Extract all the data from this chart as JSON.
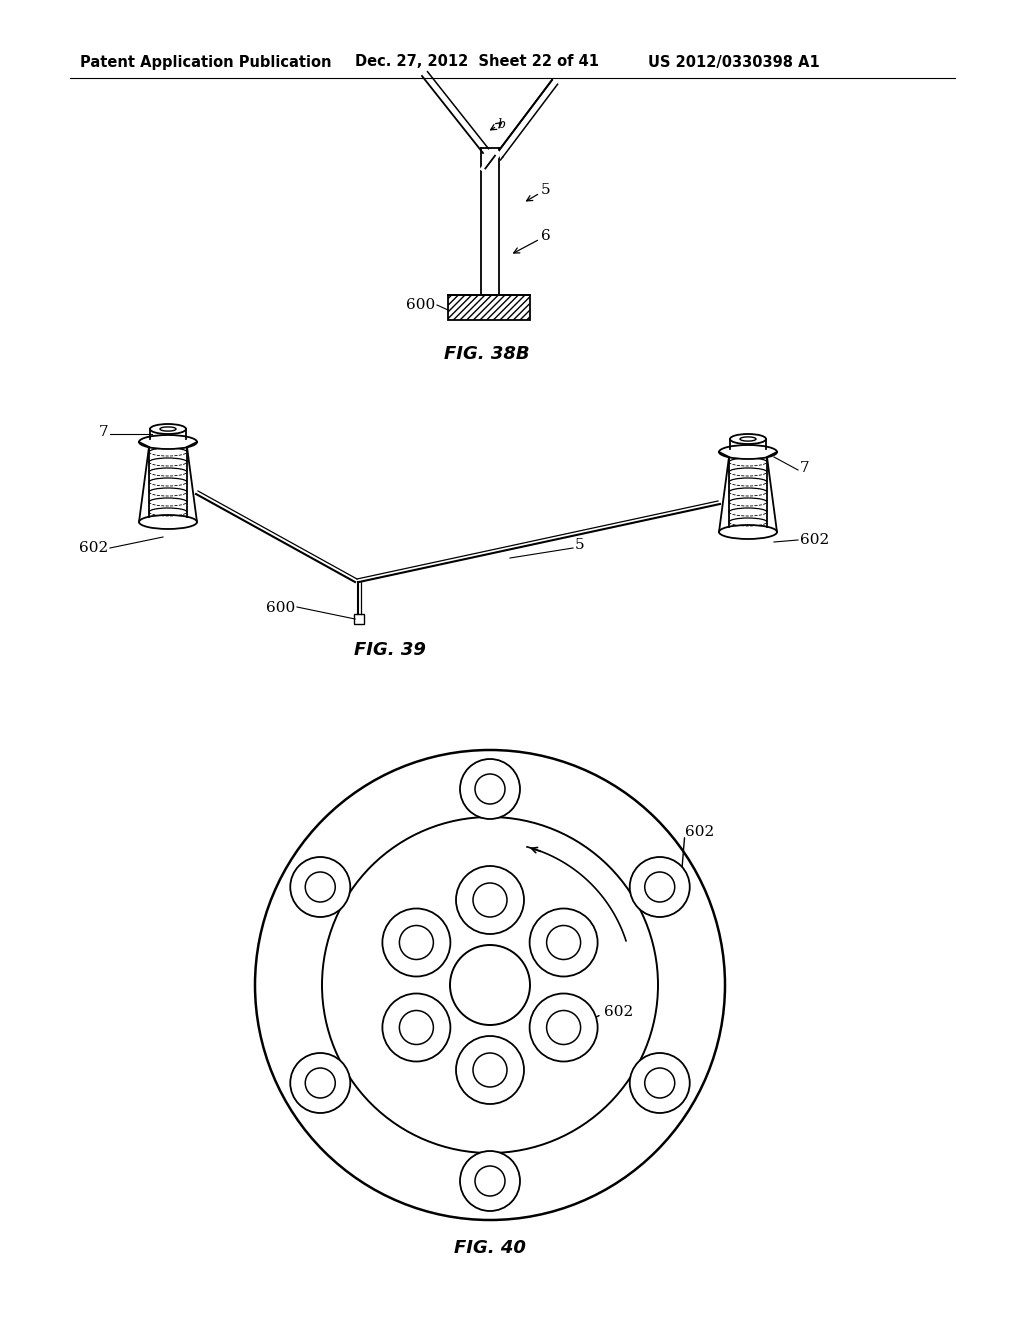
{
  "bg_color": "#ffffff",
  "header_left": "Patent Application Publication",
  "header_mid": "Dec. 27, 2012  Sheet 22 of 41",
  "header_right": "US 2012/0330398 A1",
  "fig38b_label": "FIG. 38B",
  "fig39_label": "FIG. 39",
  "fig40_label": "FIG. 40",
  "label_600": "600",
  "label_5": "5",
  "label_6": "6",
  "label_b": "b",
  "label_7": "7",
  "label_602": "602"
}
